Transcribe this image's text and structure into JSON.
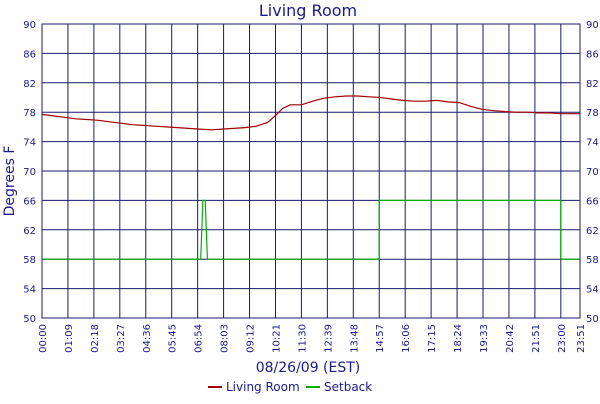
{
  "chart_data": {
    "type": "line",
    "title": "Living Room",
    "xlabel": "08/26/09 (EST)",
    "ylabel": "Degrees F",
    "ylim": [
      50,
      90
    ],
    "xlim": [
      "00:00",
      "23:51"
    ],
    "grid": true,
    "legend_position": "bottom-center",
    "y_ticks": [
      "50",
      "54",
      "58",
      "62",
      "66",
      "70",
      "74",
      "78",
      "82",
      "86",
      "90"
    ],
    "x_ticks": [
      "00:00",
      "01:09",
      "02:18",
      "03:27",
      "04:36",
      "05:45",
      "06:54",
      "08:03",
      "09:12",
      "10:21",
      "11:30",
      "12:39",
      "13:48",
      "14:57",
      "16:06",
      "17:15",
      "18:24",
      "19:33",
      "20:42",
      "21:51",
      "23:00",
      "23:51"
    ],
    "series": [
      {
        "name": "Living Room",
        "color": "#a00000",
        "points": [
          [
            "00:00",
            77.7
          ],
          [
            "00:30",
            77.5
          ],
          [
            "01:00",
            77.3
          ],
          [
            "01:30",
            77.1
          ],
          [
            "02:00",
            77.0
          ],
          [
            "02:30",
            76.9
          ],
          [
            "03:00",
            76.7
          ],
          [
            "03:30",
            76.5
          ],
          [
            "04:00",
            76.3
          ],
          [
            "04:30",
            76.2
          ],
          [
            "05:00",
            76.1
          ],
          [
            "05:30",
            76.0
          ],
          [
            "06:00",
            75.9
          ],
          [
            "06:30",
            75.8
          ],
          [
            "07:00",
            75.7
          ],
          [
            "07:30",
            75.6
          ],
          [
            "08:00",
            75.7
          ],
          [
            "08:30",
            75.8
          ],
          [
            "09:00",
            75.9
          ],
          [
            "09:30",
            76.1
          ],
          [
            "10:00",
            76.6
          ],
          [
            "10:20",
            77.5
          ],
          [
            "10:40",
            78.5
          ],
          [
            "11:00",
            79.0
          ],
          [
            "11:30",
            79.0
          ],
          [
            "12:00",
            79.5
          ],
          [
            "12:30",
            79.9
          ],
          [
            "13:00",
            80.1
          ],
          [
            "13:30",
            80.2
          ],
          [
            "14:00",
            80.2
          ],
          [
            "14:30",
            80.1
          ],
          [
            "15:00",
            80.0
          ],
          [
            "15:30",
            79.8
          ],
          [
            "16:00",
            79.6
          ],
          [
            "16:30",
            79.5
          ],
          [
            "17:00",
            79.5
          ],
          [
            "17:30",
            79.6
          ],
          [
            "18:00",
            79.4
          ],
          [
            "18:30",
            79.3
          ],
          [
            "19:00",
            78.8
          ],
          [
            "19:30",
            78.4
          ],
          [
            "20:00",
            78.2
          ],
          [
            "20:30",
            78.1
          ],
          [
            "21:00",
            78.0
          ],
          [
            "21:30",
            78.0
          ],
          [
            "22:00",
            77.9
          ],
          [
            "22:30",
            77.9
          ],
          [
            "23:00",
            77.8
          ],
          [
            "23:30",
            77.8
          ],
          [
            "23:51",
            77.8
          ]
        ]
      },
      {
        "name": "Setback",
        "color": "#00b000",
        "points": [
          [
            "00:00",
            58
          ],
          [
            "07:02",
            58
          ],
          [
            "07:08",
            66
          ],
          [
            "07:14",
            66
          ],
          [
            "07:20",
            58
          ],
          [
            "14:57",
            58
          ],
          [
            "14:57",
            66
          ],
          [
            "23:00",
            66
          ],
          [
            "23:00",
            58
          ],
          [
            "23:51",
            58
          ]
        ]
      }
    ]
  }
}
